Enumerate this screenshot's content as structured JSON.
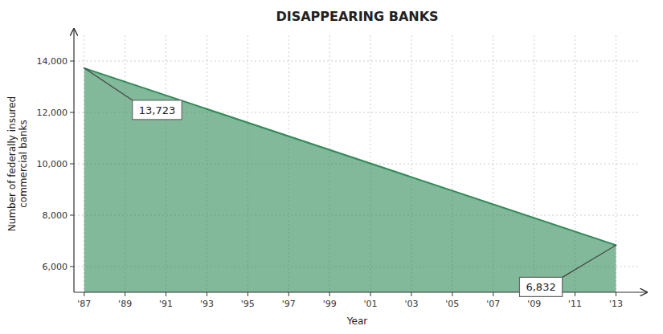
{
  "chart_data": {
    "type": "area",
    "title": "DISAPPEARING BANKS",
    "x_label": "Year",
    "y_label": "Number of federally insured\ncommercial banks",
    "x": [
      1987,
      2013
    ],
    "values": [
      13723,
      6832
    ],
    "color": "#2e8b57",
    "xlim": [
      1986.5,
      2014.2
    ],
    "ylim": [
      5000,
      15000
    ],
    "xticks": [
      {
        "value": 1987,
        "label": "'87"
      },
      {
        "value": 1989,
        "label": "'89"
      },
      {
        "value": 1991,
        "label": "'91"
      },
      {
        "value": 1993,
        "label": "'93"
      },
      {
        "value": 1995,
        "label": "'95"
      },
      {
        "value": 1997,
        "label": "'97"
      },
      {
        "value": 1999,
        "label": "'99"
      },
      {
        "value": 2001,
        "label": "'01"
      },
      {
        "value": 2003,
        "label": "'03"
      },
      {
        "value": 2005,
        "label": "'05"
      },
      {
        "value": 2007,
        "label": "'07"
      },
      {
        "value": 2009,
        "label": "'09"
      },
      {
        "value": 2011,
        "label": "'11"
      },
      {
        "value": 2013,
        "label": "'13"
      }
    ],
    "yticks": [
      {
        "value": 6000,
        "label": "6,000"
      },
      {
        "value": 8000,
        "label": "8,000"
      },
      {
        "value": 10000,
        "label": "10,000"
      },
      {
        "value": 12000,
        "label": "12,000"
      },
      {
        "value": 14000,
        "label": "14,000"
      }
    ],
    "grid": true,
    "annotations": [
      {
        "text": "13,723",
        "x": 1987,
        "y": 13723
      },
      {
        "text": "6,832",
        "x": 2013,
        "y": 6832
      }
    ]
  }
}
